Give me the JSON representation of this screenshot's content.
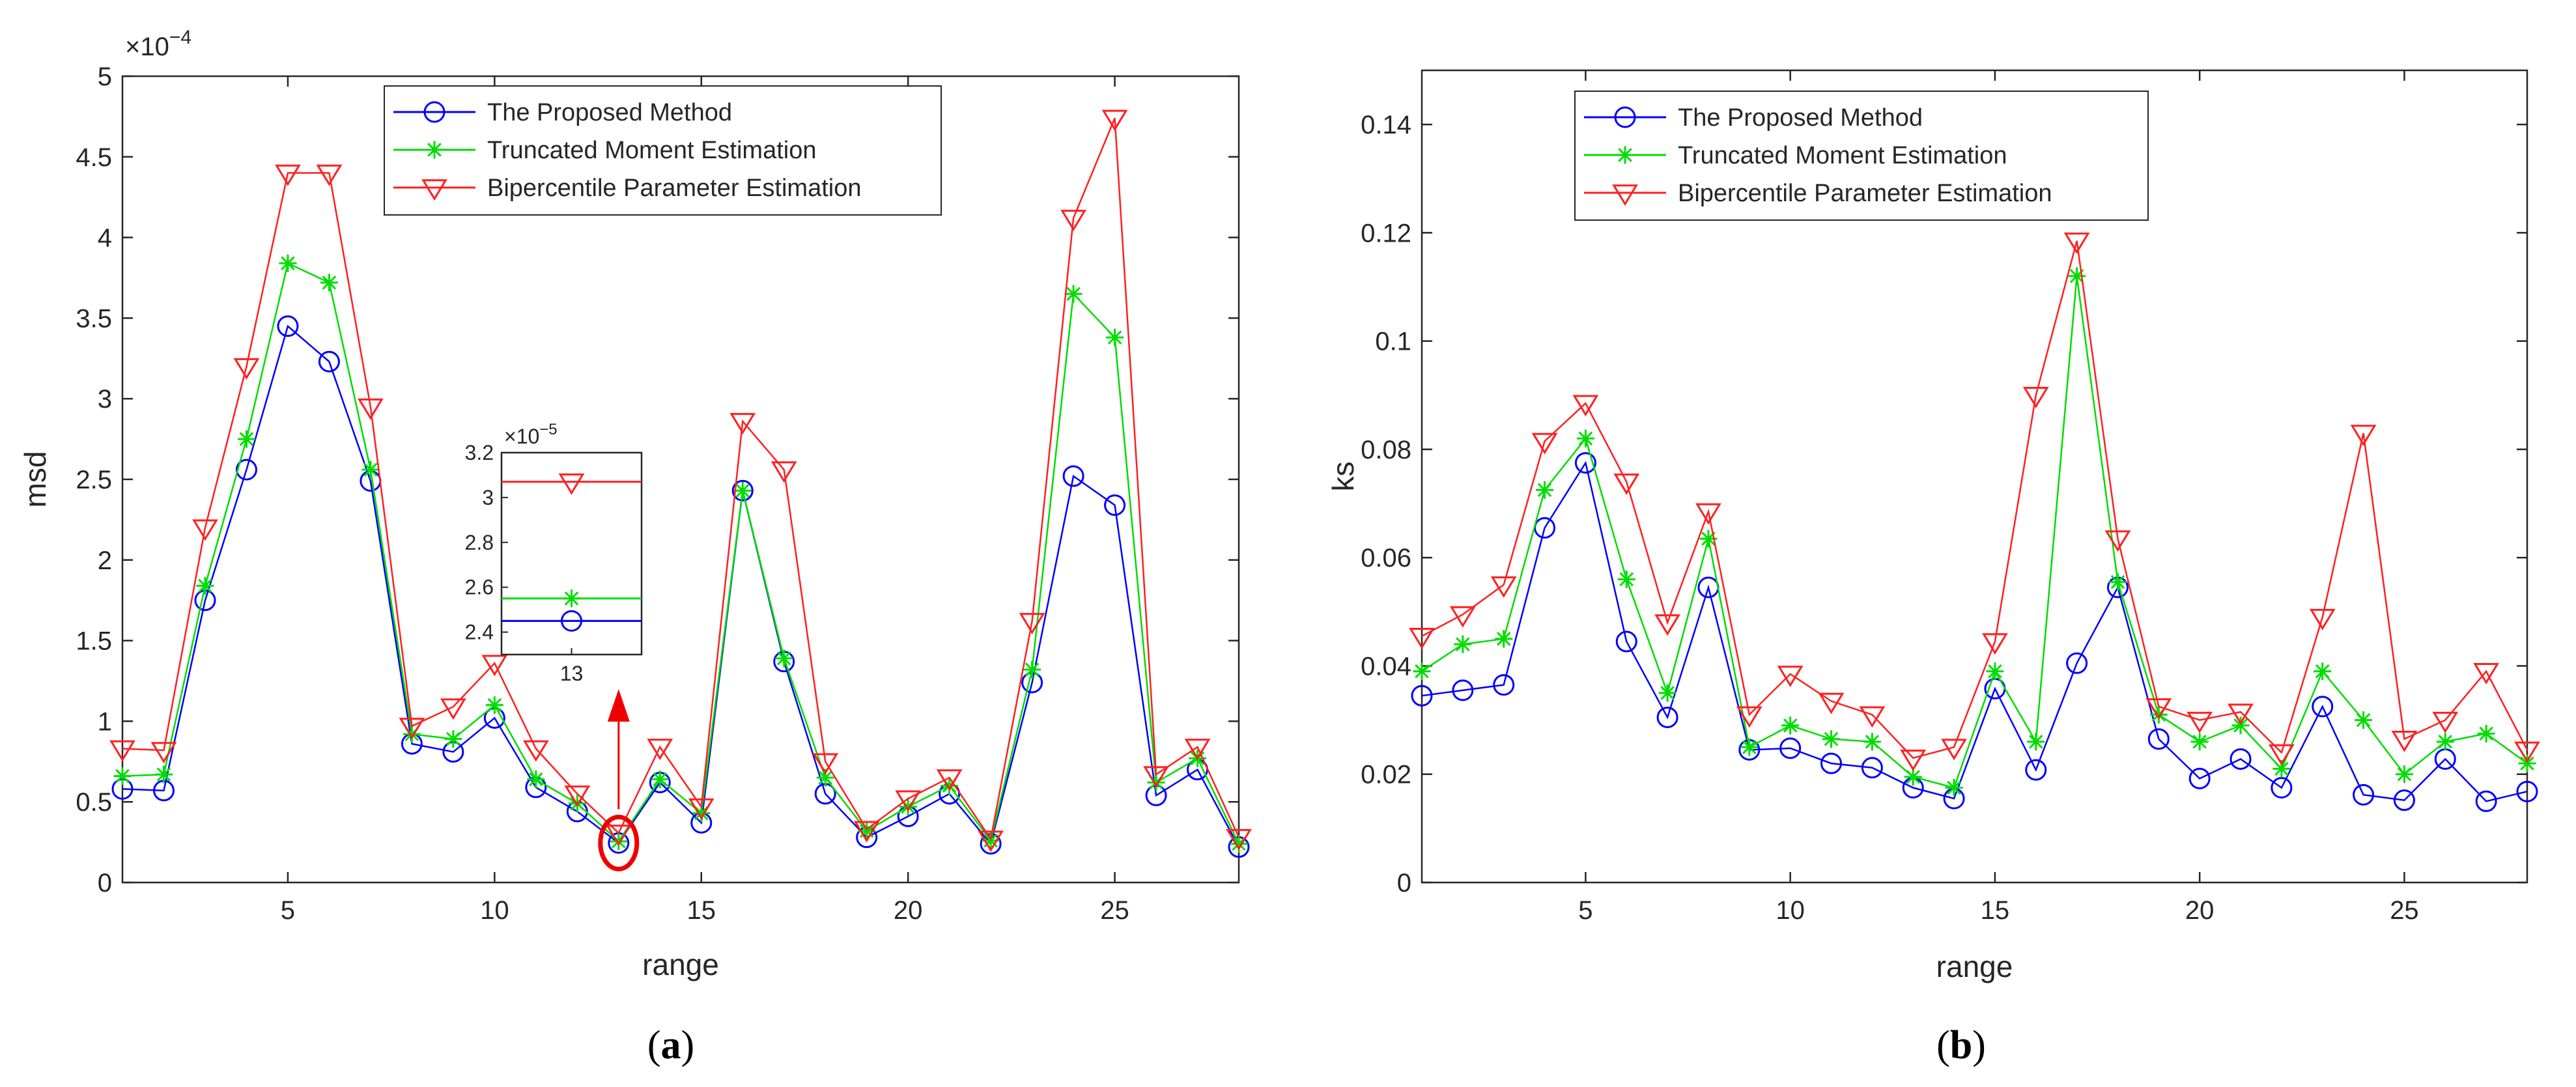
{
  "chart_data": [
    {
      "type": "line",
      "caption": "(a)",
      "xlabel": "range",
      "ylabel": "msd",
      "exponent_base": "×10",
      "exponent_power": "−4",
      "xlim": [
        1,
        28
      ],
      "ylim": [
        0,
        5
      ],
      "xticks": [
        "5",
        "10",
        "15",
        "20",
        "25"
      ],
      "yticks": [
        "0",
        "0.5",
        "1",
        "1.5",
        "2",
        "2.5",
        "3",
        "3.5",
        "4",
        "4.5",
        "5"
      ],
      "x": [
        1,
        2,
        3,
        4,
        5,
        6,
        7,
        8,
        9,
        10,
        11,
        12,
        13,
        14,
        15,
        16,
        17,
        18,
        19,
        20,
        21,
        22,
        23,
        24,
        25,
        26,
        27,
        28
      ],
      "series": [
        {
          "name": "The Proposed Method",
          "color": "#0000ff",
          "marker": "circle",
          "values": [
            0.58,
            0.57,
            1.75,
            2.56,
            3.45,
            3.23,
            2.49,
            0.86,
            0.81,
            1.02,
            0.59,
            0.44,
            0.245,
            0.62,
            0.37,
            2.43,
            1.37,
            0.55,
            0.28,
            0.41,
            0.55,
            0.24,
            1.24,
            2.52,
            2.34,
            0.54,
            0.7,
            0.22
          ]
        },
        {
          "name": "Truncated Moment Estimation",
          "color": "#00dd00",
          "marker": "star",
          "values": [
            0.66,
            0.67,
            1.84,
            2.75,
            3.84,
            3.72,
            2.56,
            0.92,
            0.89,
            1.1,
            0.64,
            0.49,
            0.255,
            0.64,
            0.43,
            2.43,
            1.39,
            0.65,
            0.32,
            0.47,
            0.6,
            0.26,
            1.32,
            3.65,
            3.38,
            0.62,
            0.77,
            0.24
          ]
        },
        {
          "name": "Bipercentile Parameter Estimation",
          "color": "#ff2020",
          "marker": "triangle",
          "values": [
            0.83,
            0.82,
            2.2,
            3.2,
            4.4,
            4.4,
            2.95,
            0.97,
            1.09,
            1.36,
            0.83,
            0.55,
            0.307,
            0.84,
            0.47,
            2.86,
            2.56,
            0.75,
            0.33,
            0.52,
            0.65,
            0.27,
            1.62,
            4.12,
            4.74,
            0.67,
            0.84,
            0.28
          ]
        }
      ],
      "inset": {
        "exponent_base": "×10",
        "exponent_power": "−5",
        "ylim": [
          2.3,
          3.2
        ],
        "xlim": [
          12.92,
          13.08
        ],
        "yticks": [
          "2.4",
          "2.6",
          "2.8",
          "3",
          "3.2"
        ],
        "xticks": [
          "13"
        ],
        "highlight_x": 13,
        "values": [
          2.45,
          2.55,
          3.07
        ]
      }
    },
    {
      "type": "line",
      "caption": "(b)",
      "xlabel": "range",
      "ylabel": "ks",
      "xlim": [
        1,
        28
      ],
      "ylim": [
        0,
        0.15
      ],
      "xticks": [
        "5",
        "10",
        "15",
        "20",
        "25"
      ],
      "yticks": [
        "0",
        "0.02",
        "0.04",
        "0.06",
        "0.08",
        "0.1",
        "0.12",
        "0.14"
      ],
      "x": [
        1,
        2,
        3,
        4,
        5,
        6,
        7,
        8,
        9,
        10,
        11,
        12,
        13,
        14,
        15,
        16,
        17,
        18,
        19,
        20,
        21,
        22,
        23,
        24,
        25,
        26,
        27,
        28
      ],
      "series": [
        {
          "name": "The Proposed Method",
          "color": "#0000ff",
          "marker": "circle",
          "values": [
            0.0345,
            0.0355,
            0.0365,
            0.0655,
            0.0775,
            0.0445,
            0.0305,
            0.0545,
            0.0245,
            0.0248,
            0.022,
            0.0212,
            0.0175,
            0.0155,
            0.0358,
            0.0208,
            0.0405,
            0.0545,
            0.0265,
            0.0192,
            0.0228,
            0.0175,
            0.0325,
            0.0162,
            0.0152,
            0.0228,
            0.015,
            0.0168
          ]
        },
        {
          "name": "Truncated Moment Estimation",
          "color": "#00dd00",
          "marker": "star",
          "values": [
            0.039,
            0.044,
            0.045,
            0.0725,
            0.082,
            0.056,
            0.035,
            0.0635,
            0.025,
            0.029,
            0.0265,
            0.026,
            0.0195,
            0.0175,
            0.039,
            0.026,
            0.112,
            0.0555,
            0.031,
            0.026,
            0.029,
            0.021,
            0.039,
            0.03,
            0.02,
            0.026,
            0.0275,
            0.022
          ]
        },
        {
          "name": "Bipercentile Parameter Estimation",
          "color": "#ff2020",
          "marker": "triangle",
          "values": [
            0.0455,
            0.0495,
            0.055,
            0.0815,
            0.0885,
            0.074,
            0.048,
            0.0685,
            0.031,
            0.0385,
            0.0335,
            0.031,
            0.023,
            0.025,
            0.0445,
            0.09,
            0.1185,
            0.0635,
            0.0325,
            0.03,
            0.0315,
            0.024,
            0.049,
            0.083,
            0.0265,
            0.03,
            0.039,
            0.0245
          ]
        }
      ]
    }
  ]
}
